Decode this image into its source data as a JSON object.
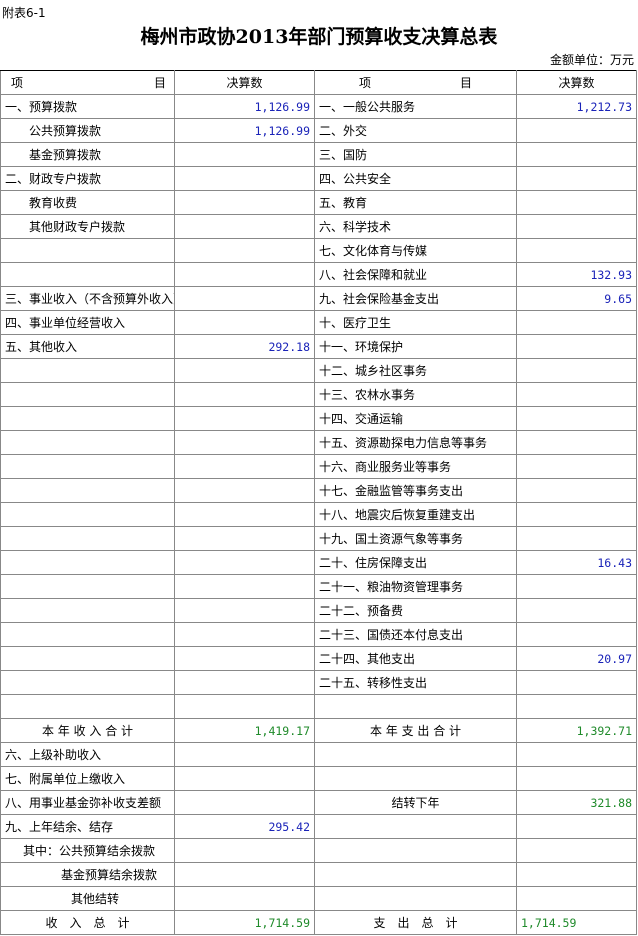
{
  "header": {
    "code": "附表6-1",
    "title": "梅州市政协2013年部门预算收支决算总表",
    "unit": "金额单位：万元"
  },
  "table": {
    "head": [
      "项",
      "目",
      "决算数",
      "项",
      "目",
      "决算数"
    ],
    "rows": [
      [
        "一、预算拨款",
        "1,126.99",
        "一、一般公共服务",
        "1,212.73"
      ],
      [
        "公共预算拨款",
        "1,126.99",
        "二、外交",
        null
      ],
      [
        "基金预算拨款",
        null,
        "三、国防",
        null
      ],
      [
        "二、财政专户拨款",
        null,
        "四、公共安全",
        null
      ],
      [
        "教育收费",
        null,
        "五、教育",
        null
      ],
      [
        "其他财政专户拨款",
        null,
        "六、科学技术",
        null
      ],
      [
        null,
        null,
        "七、文化体育与传媒",
        null
      ],
      [
        null,
        null,
        "八、社会保障和就业",
        "132.93"
      ],
      [
        "三、事业收入（不含预算外收入）",
        null,
        "九、社会保险基金支出",
        "9.65"
      ],
      [
        "四、事业单位经营收入",
        null,
        "十、医疗卫生",
        null
      ],
      [
        "五、其他收入",
        "292.18",
        "十一、环境保护",
        null
      ],
      [
        null,
        null,
        "十二、城乡社区事务",
        null
      ],
      [
        null,
        null,
        "十三、农林水事务",
        null
      ],
      [
        null,
        null,
        "十四、交通运输",
        null
      ],
      [
        null,
        null,
        "十五、资源勘探电力信息等事务",
        null
      ],
      [
        null,
        null,
        "十六、商业服务业等事务",
        null
      ],
      [
        null,
        null,
        "十七、金融监管等事务支出",
        null
      ],
      [
        null,
        null,
        "十八、地震灾后恢复重建支出",
        null
      ],
      [
        null,
        null,
        "十九、国土资源气象等事务",
        null
      ],
      [
        null,
        null,
        "二十、住房保障支出",
        "16.43"
      ],
      [
        null,
        null,
        "二十一、粮油物资管理事务",
        null
      ],
      [
        null,
        null,
        "二十二、预备费",
        null
      ],
      [
        null,
        null,
        "二十三、国债还本付息支出",
        null
      ],
      [
        null,
        null,
        "二十四、其他支出",
        "20.97"
      ],
      [
        null,
        null,
        "二十五、转移性支出",
        null
      ],
      [
        null,
        null,
        null,
        null
      ],
      [
        "本 年 收 入 合 计",
        "1,419.17",
        "本 年 支 出 合 计",
        "1,392.71"
      ],
      [
        "六、上级补助收入",
        null,
        null,
        null
      ],
      [
        "七、附属单位上缴收入",
        null,
        null,
        null
      ],
      [
        "八、用事业基金弥补收支差额",
        null,
        "结转下年",
        "321.88"
      ],
      [
        "九、上年结余、结存",
        "295.42",
        null,
        null
      ],
      [
        "其中：公共预算结余拨款",
        null,
        null,
        null
      ],
      [
        "基金预算结余拨款",
        null,
        null,
        null
      ],
      [
        "其他结转",
        null,
        null,
        null
      ],
      [
        "收　入　总　计",
        "1,714.59",
        "支　出　总　计",
        "1,714.59"
      ]
    ]
  }
}
